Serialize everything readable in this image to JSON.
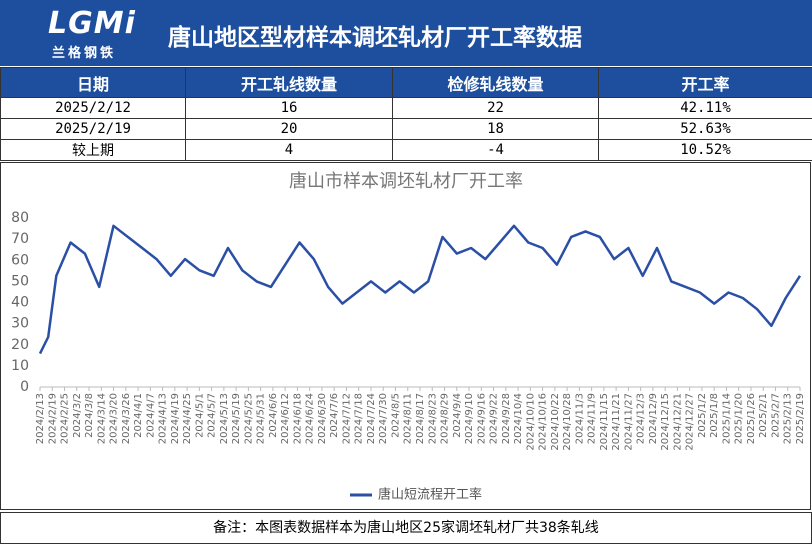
{
  "header": {
    "logo": "LGMi",
    "logo_sub": "兰格钢铁",
    "title": "唐山地区型材样本调坯轧材厂开工率数据"
  },
  "table": {
    "columns": [
      "日期",
      "开工轧线数量",
      "检修轧线数量",
      "开工率"
    ],
    "rows": [
      [
        "2025/2/12",
        "16",
        "22",
        "42.11%"
      ],
      [
        "2025/2/19",
        "20",
        "18",
        "52.63%"
      ],
      [
        "较上期",
        "4",
        "-4",
        "10.52%"
      ]
    ]
  },
  "chart_data": {
    "type": "line",
    "title": "唐山市样本调坯轧材厂开工率",
    "x": [
      "2024/2/13",
      "2024/2/17",
      "2024/2/21",
      "2024/2/28",
      "2024/3/6",
      "2024/3/13",
      "2024/3/20",
      "2024/3/27",
      "2024/4/3",
      "2024/4/10",
      "2024/4/17",
      "2024/4/24",
      "2024/5/1",
      "2024/5/8",
      "2024/5/15",
      "2024/5/22",
      "2024/5/29",
      "2024/6/5",
      "2024/6/12",
      "2024/6/19",
      "2024/6/26",
      "2024/7/3",
      "2024/7/10",
      "2024/7/17",
      "2024/7/24",
      "2024/7/31",
      "2024/8/7",
      "2024/8/14",
      "2024/8/21",
      "2024/8/28",
      "2024/9/4",
      "2024/9/11",
      "2024/9/18",
      "2024/9/25",
      "2024/10/2",
      "2024/10/9",
      "2024/10/16",
      "2024/10/23",
      "2024/10/30",
      "2024/11/6",
      "2024/11/13",
      "2024/11/20",
      "2024/11/27",
      "2024/12/4",
      "2024/12/11",
      "2024/12/18",
      "2024/12/25",
      "2025/1/1",
      "2025/1/8",
      "2025/1/15",
      "2025/1/22",
      "2025/1/29",
      "2025/2/5",
      "2025/2/12",
      "2025/2/19"
    ],
    "series": [
      {
        "name": "唐山短流程开工率",
        "color": "#2a4fa5",
        "values": [
          15.79,
          23.68,
          52.63,
          68.42,
          63.16,
          47.37,
          76.32,
          71.05,
          65.79,
          60.53,
          52.63,
          60.53,
          55.26,
          52.63,
          65.79,
          55.26,
          50,
          47.37,
          57.89,
          68.42,
          60.53,
          47.37,
          39.47,
          44.74,
          50,
          44.74,
          50,
          44.74,
          50,
          71.05,
          63.16,
          65.79,
          60.53,
          68.42,
          76.32,
          68.42,
          65.79,
          57.89,
          71.05,
          73.68,
          71.05,
          60.53,
          65.79,
          52.63,
          65.79,
          50,
          47.37,
          44.74,
          39.47,
          44.74,
          42.11,
          36.84,
          28.95,
          42.11,
          52.63
        ]
      }
    ],
    "xlim": [
      "2024/2/13",
      "2025/2/19"
    ],
    "xticks": [
      "2024/2/13",
      "2024/2/19",
      "2024/2/25",
      "2024/3/2",
      "2024/3/8",
      "2024/3/14",
      "2024/3/20",
      "2024/3/26",
      "2024/4/1",
      "2024/4/7",
      "2024/4/13",
      "2024/4/19",
      "2024/4/25",
      "2024/5/1",
      "2024/5/7",
      "2024/5/13",
      "2024/5/19",
      "2024/5/25",
      "2024/5/31",
      "2024/6/6",
      "2024/6/12",
      "2024/6/18",
      "2024/6/24",
      "2024/6/30",
      "2024/7/6",
      "2024/7/12",
      "2024/7/18",
      "2024/7/24",
      "2024/7/30",
      "2024/8/5",
      "2024/8/11",
      "2024/8/17",
      "2024/8/23",
      "2024/8/29",
      "2024/9/4",
      "2024/9/10",
      "2024/9/16",
      "2024/9/22",
      "2024/9/28",
      "2024/10/4",
      "2024/10/10",
      "2024/10/16",
      "2024/10/22",
      "2024/10/28",
      "2024/11/3",
      "2024/11/9",
      "2024/11/15",
      "2024/11/21",
      "2024/11/27",
      "2024/12/3",
      "2024/12/9",
      "2024/12/15",
      "2024/12/21",
      "2024/12/27",
      "2025/1/2",
      "2025/1/8",
      "2025/1/14",
      "2025/1/20",
      "2025/1/26",
      "2025/2/1",
      "2025/2/7",
      "2025/2/13",
      "2025/2/19"
    ],
    "ylim": [
      0,
      80
    ],
    "yticks": [
      0,
      10,
      20,
      30,
      40,
      50,
      60,
      70,
      80
    ],
    "grid": false,
    "legend": "bottom"
  },
  "footer": {
    "note": "备注：本图表数据样本为唐山地区25家调坯轧材厂共38条轧线"
  }
}
